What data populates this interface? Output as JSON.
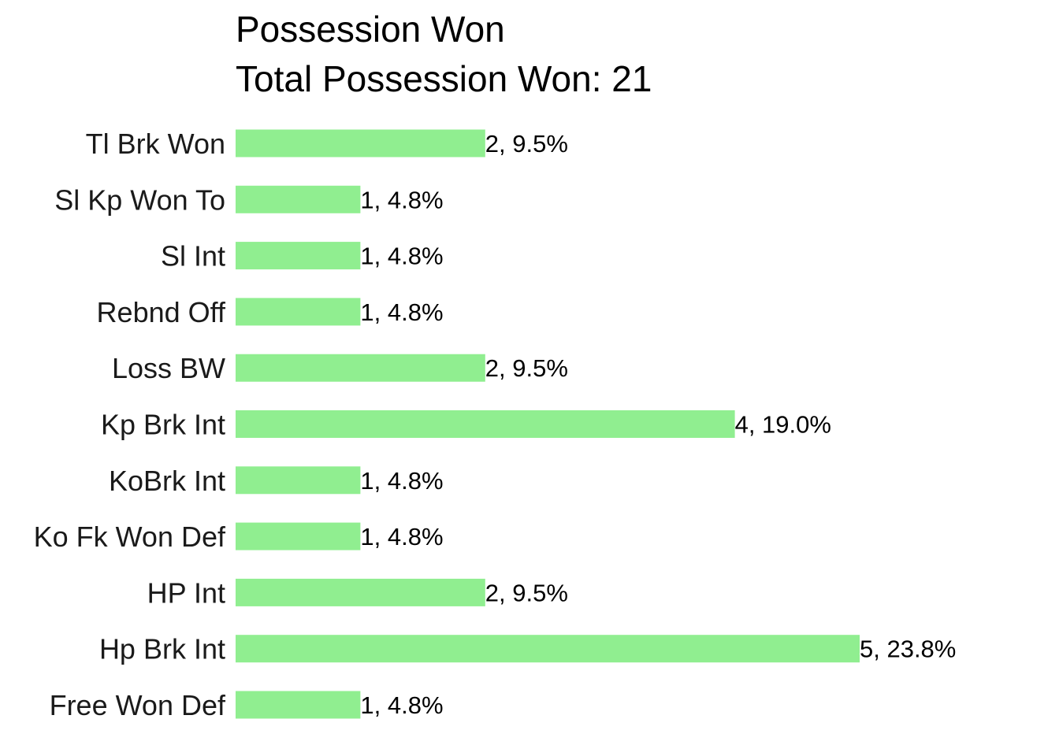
{
  "chart_data": {
    "type": "bar",
    "orientation": "horizontal",
    "title": "Possession Won",
    "subtitle": "Total Possession Won: 21",
    "xlabel": "",
    "ylabel": "",
    "grid": false,
    "bar_color": "#90EE90",
    "xlim": [
      0,
      5
    ],
    "categories": [
      "Tl Brk Won",
      "Sl Kp Won To",
      "Sl Int",
      "Rebnd Off",
      "Loss BW",
      "Kp Brk Int",
      "KoBrk Int",
      "Ko Fk Won Def",
      "HP Int",
      "Hp Brk Int",
      "Free Won Def"
    ],
    "values": [
      2,
      1,
      1,
      1,
      2,
      4,
      1,
      1,
      2,
      5,
      1
    ],
    "data_labels": [
      "2, 9.5%",
      "1, 4.8%",
      "1, 4.8%",
      "1, 4.8%",
      "2, 9.5%",
      "4, 19.0%",
      "1, 4.8%",
      "1, 4.8%",
      "2, 9.5%",
      "5, 23.8%",
      "1, 4.8%"
    ]
  }
}
